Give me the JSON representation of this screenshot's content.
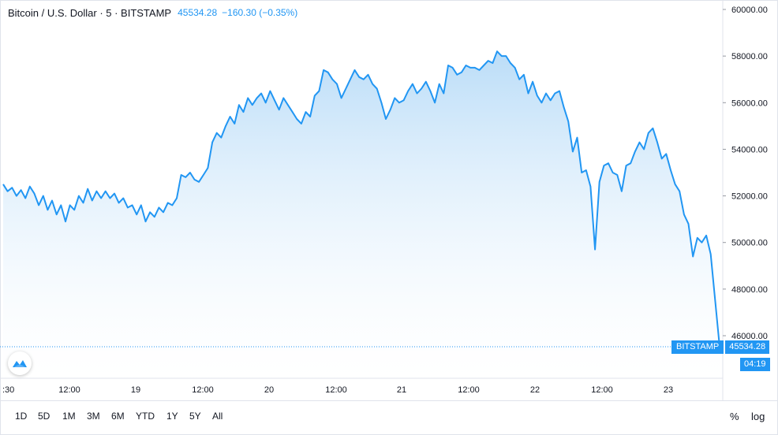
{
  "header": {
    "symbol": "Bitcoin / U.S. Dollar · 5 · BITSTAMP",
    "price": "45534.28",
    "change": "−160.30 (−0.35%)"
  },
  "colors": {
    "line": "#2196f3",
    "fill_top": "#b3d9f7",
    "fill_bottom": "#ffffff",
    "grid": "#e0e3eb",
    "tag": "#2196f3"
  },
  "price_tag": {
    "exchange": "BITSTAMP",
    "value": "45534.28",
    "timer": "04:19"
  },
  "time_labels": [
    ":30",
    "12:00",
    "19",
    "12:00",
    "20",
    "12:00",
    "21",
    "12:00",
    "22",
    "12:00",
    "23"
  ],
  "range_buttons": [
    "1D",
    "5D",
    "1M",
    "3M",
    "6M",
    "YTD",
    "1Y",
    "5Y",
    "All"
  ],
  "options": {
    "percent": "%",
    "log": "log"
  },
  "chart_data": {
    "type": "area",
    "title": "Bitcoin / U.S. Dollar · 5 · BITSTAMP",
    "xlabel": "",
    "ylabel": "",
    "ylim": [
      45000,
      60400
    ],
    "y_ticks": [
      "46000.00",
      "48000.00",
      "50000.00",
      "52000.00",
      "54000.00",
      "56000.00",
      "58000.00",
      "60000.00"
    ],
    "x_ticks": [
      ":30",
      "12:00",
      "19",
      "12:00",
      "20",
      "12:00",
      "21",
      "12:00",
      "22",
      "12:00",
      "23"
    ],
    "series": [
      {
        "values": [
          52500,
          52200,
          52350,
          52000,
          52250,
          51900,
          52400,
          52100,
          51600,
          52000,
          51400,
          51800,
          51200,
          51600,
          50900,
          51600,
          51400,
          52000,
          51700,
          52300,
          51800,
          52200,
          51900,
          52200,
          51900,
          52100,
          51700,
          51900,
          51500,
          51600,
          51200,
          51600,
          50900,
          51300,
          51100,
          51500,
          51300,
          51700,
          51600,
          51900,
          52900,
          52800,
          53000,
          52700,
          52600,
          52900,
          53200,
          54300,
          54700,
          54500,
          55000,
          55400,
          55100,
          55900,
          55600,
          56200,
          55900,
          56200,
          56400,
          56000,
          56500,
          56100,
          55700,
          56200,
          55900,
          55600,
          55300,
          55100,
          55600,
          55400,
          56300,
          56500,
          57400,
          57300,
          57000,
          56800,
          56200,
          56600,
          57000,
          57400,
          57100,
          57000,
          57200,
          56800,
          56600,
          56000,
          55300,
          55700,
          56200,
          56000,
          56100,
          56500,
          56800,
          56400,
          56600,
          56900,
          56500,
          56000,
          56800,
          56400,
          57600,
          57500,
          57200,
          57300,
          57600,
          57500,
          57500,
          57400,
          57600,
          57800,
          57700,
          58200,
          58000,
          58000,
          57700,
          57500,
          57000,
          57200,
          56400,
          56900,
          56300,
          56000,
          56400,
          56100,
          56400,
          56500,
          55800,
          55200,
          53900,
          54500,
          53000,
          53100,
          52400,
          49700,
          52600,
          53300,
          53400,
          53000,
          52900,
          52200,
          53300,
          53400,
          53900,
          54300,
          54000,
          54700,
          54900,
          54300,
          53600,
          53800,
          53100,
          52500,
          52200,
          51200,
          50800,
          49400,
          50200,
          50000,
          50300,
          49500,
          47500,
          45534
        ]
      }
    ]
  }
}
